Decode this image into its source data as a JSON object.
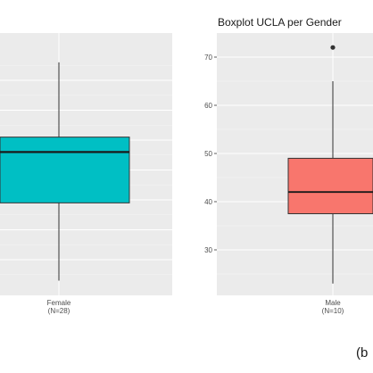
{
  "chart_data": [
    {
      "type": "boxplot",
      "title": "",
      "xlabel": "",
      "ylabel": "",
      "grid": true,
      "categories": [
        {
          "label": "Female",
          "n_label": "(N=28)",
          "color": "#00BFC4",
          "min": 13,
          "q1": 39,
          "median": 56,
          "q3": 61,
          "max": 86,
          "outliers": []
        }
      ]
    },
    {
      "type": "boxplot",
      "title": "Boxplot UCLA per Gender",
      "xlabel": "",
      "ylabel": "",
      "ylim": [
        21,
        74
      ],
      "yticks": [
        30,
        40,
        50,
        60,
        70
      ],
      "grid": true,
      "categories": [
        {
          "label": "Male",
          "n_label": "(N=10)",
          "color": "#F8766D",
          "min": 23,
          "q1": 37.5,
          "median": 42,
          "q3": 49,
          "max": 65,
          "outliers": [
            72
          ]
        }
      ]
    }
  ],
  "caption": "(b"
}
